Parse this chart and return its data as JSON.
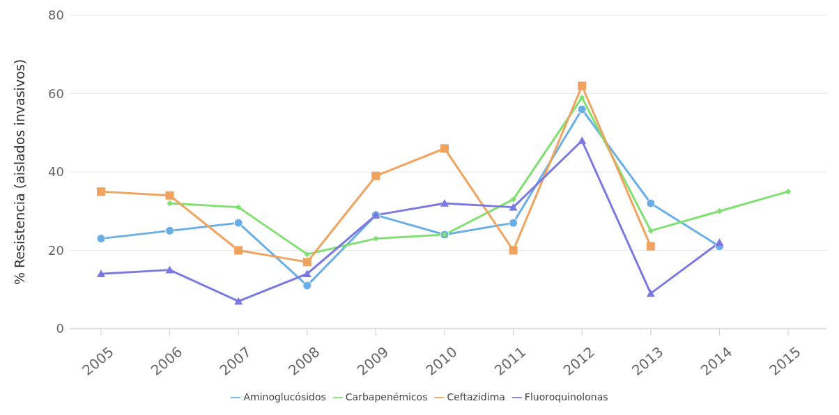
{
  "chart_data": {
    "type": "line",
    "ylabel": "% Resistencia (aislados invasivos)",
    "categories": [
      "2005",
      "2006",
      "2007",
      "2008",
      "2009",
      "2010",
      "2011",
      "2012",
      "2013",
      "2014",
      "2015"
    ],
    "series": [
      {
        "name": "Aminoglucósidos",
        "color": "#6aaee6",
        "marker": "circle",
        "values": [
          23,
          25,
          27,
          11,
          29,
          24,
          27,
          56,
          32,
          21,
          null
        ]
      },
      {
        "name": "Carbapenémicos",
        "color": "#7ee06e",
        "marker": "diamond",
        "values": [
          null,
          32,
          31,
          19,
          23,
          24,
          33,
          59,
          25,
          30,
          35
        ]
      },
      {
        "name": "Ceftazidima",
        "color": "#f0a35e",
        "marker": "square",
        "values": [
          35,
          34,
          20,
          17,
          39,
          46,
          20,
          62,
          21,
          null,
          null
        ]
      },
      {
        "name": "Fluoroquinolonas",
        "color": "#7b78e0",
        "marker": "triangle",
        "values": [
          14,
          15,
          7,
          14,
          29,
          32,
          31,
          48,
          9,
          22,
          null
        ]
      }
    ],
    "ylim": [
      0,
      80
    ],
    "yticks": [
      0,
      20,
      40,
      60,
      80
    ],
    "grid": "y",
    "legend": "bottom",
    "line_style": "solid"
  }
}
